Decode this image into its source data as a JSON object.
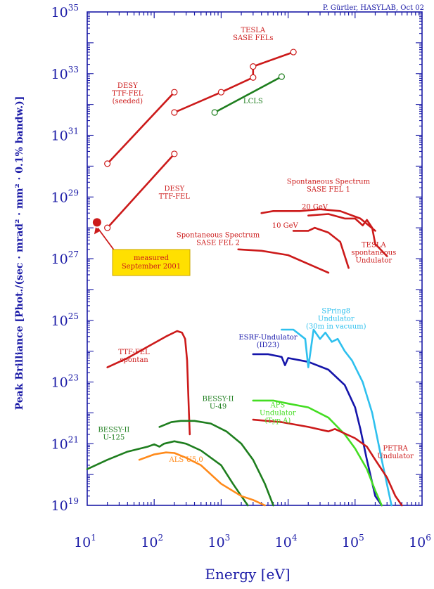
{
  "chart_data": {
    "type": "line",
    "credit": "P. Gürtler, HASYLAB, Oct 02",
    "xlabel": "Energy [eV]",
    "ylabel": "Peak Brilliance [Phot./(sec · mrad² · mm² · 0.1% bandw.)]",
    "x_scale": "log",
    "y_scale": "log",
    "xlim": [
      10,
      1000000
    ],
    "ylim": [
      1e+19,
      1e+35
    ],
    "x_ticks": [
      {
        "base": "10",
        "exp": "1"
      },
      {
        "base": "10",
        "exp": "2"
      },
      {
        "base": "10",
        "exp": "3"
      },
      {
        "base": "10",
        "exp": "4"
      },
      {
        "base": "10",
        "exp": "5"
      },
      {
        "base": "10",
        "exp": "6"
      }
    ],
    "y_ticks": [
      {
        "base": "10",
        "exp": "19"
      },
      {
        "base": "10",
        "exp": "21"
      },
      {
        "base": "10",
        "exp": "23"
      },
      {
        "base": "10",
        "exp": "25"
      },
      {
        "base": "10",
        "exp": "27"
      },
      {
        "base": "10",
        "exp": "29"
      },
      {
        "base": "10",
        "exp": "31"
      },
      {
        "base": "10",
        "exp": "33"
      },
      {
        "base": "10",
        "exp": "35"
      }
    ],
    "colors": {
      "axis": "#1a1aa6",
      "red": "#cc1a1a",
      "green": "#1e7e1e",
      "light_green": "#44dd22",
      "orange": "#ff8a1a",
      "navy": "#1515aa",
      "cyan": "#2ec0ee",
      "callout_fill": "#ffe000"
    },
    "series": [
      {
        "color": "red",
        "marker": "circle",
        "points": [
          [
            20,
            1.2e+30
          ],
          [
            200,
            2.5e+32
          ]
        ]
      },
      {
        "color": "red",
        "marker": "circle",
        "points": [
          [
            20,
            1e+28
          ],
          [
            200,
            2.5e+30
          ]
        ]
      },
      {
        "color": "red",
        "marker": "circle",
        "points": [
          [
            200,
            5.5e+31
          ],
          [
            1000,
            2.5e+32
          ],
          [
            3000,
            7.5e+32
          ],
          [
            3000,
            1.7e+33
          ],
          [
            12000,
            5e+33
          ]
        ]
      },
      {
        "color": "green",
        "marker": "circle",
        "points": [
          [
            800,
            5.5e+31
          ],
          [
            8000,
            8e+32
          ]
        ]
      },
      {
        "color": "red",
        "points": [
          [
            20,
            3e+23
          ],
          [
            40,
            6e+23
          ],
          [
            80,
            1.4e+24
          ],
          [
            150,
            3e+24
          ],
          [
            220,
            4.5e+24
          ],
          [
            260,
            4e+24
          ],
          [
            290,
            2.5e+24
          ],
          [
            310,
            5e+23
          ],
          [
            330,
            1e+22
          ],
          [
            340,
            2e+21
          ]
        ]
      },
      {
        "color": "green",
        "points": [
          [
            10,
            1.5e+20
          ],
          [
            20,
            3e+20
          ],
          [
            40,
            5.5e+20
          ],
          [
            80,
            8e+20
          ],
          [
            100,
            9.5e+20
          ],
          [
            120,
            8e+20
          ],
          [
            140,
            1e+21
          ],
          [
            200,
            1.2e+21
          ],
          [
            300,
            1e+21
          ],
          [
            500,
            6e+20
          ],
          [
            1000,
            2e+20
          ],
          [
            1500,
            5e+19
          ],
          [
            2000,
            2e+19
          ],
          [
            2500,
            1e+19
          ]
        ]
      },
      {
        "color": "green",
        "points": [
          [
            120,
            3.5e+21
          ],
          [
            180,
            5e+21
          ],
          [
            250,
            5.5e+21
          ],
          [
            400,
            5.5e+21
          ],
          [
            700,
            4.5e+21
          ],
          [
            1200,
            2.5e+21
          ],
          [
            2000,
            1e+21
          ],
          [
            3000,
            3e+20
          ],
          [
            4500,
            5e+19
          ],
          [
            6000,
            1e+19
          ]
        ]
      },
      {
        "color": "orange",
        "points": [
          [
            60,
            3e+20
          ],
          [
            100,
            4.5e+20
          ],
          [
            150,
            5.2e+20
          ],
          [
            200,
            5e+20
          ],
          [
            300,
            3.5e+20
          ],
          [
            500,
            2e+20
          ],
          [
            1000,
            5e+19
          ],
          [
            2000,
            2e+19
          ],
          [
            3000,
            1.5e+19
          ],
          [
            4500,
            1e+19
          ]
        ]
      },
      {
        "color": "navy",
        "points": [
          [
            3000,
            8e+23
          ],
          [
            5000,
            8e+23
          ],
          [
            8000,
            6.5e+23
          ],
          [
            9000,
            3.5e+23
          ],
          [
            10000,
            6e+23
          ],
          [
            20000,
            4.5e+23
          ],
          [
            40000,
            2.5e+23
          ],
          [
            70000,
            8e+22
          ],
          [
            100000,
            1.5e+22
          ],
          [
            120000,
            3e+21
          ],
          [
            150000,
            3e+20
          ],
          [
            200000,
            2e+19
          ],
          [
            250000,
            1e+19
          ]
        ]
      },
      {
        "color": "cyan",
        "points": [
          [
            8000,
            5e+24
          ],
          [
            12000,
            5e+24
          ],
          [
            18000,
            2.5e+24
          ],
          [
            20000,
            3e+23
          ],
          [
            24000,
            5e+24
          ],
          [
            30000,
            2.5e+24
          ],
          [
            36000,
            4e+24
          ],
          [
            45000,
            2e+24
          ],
          [
            55000,
            2.5e+24
          ],
          [
            70000,
            1e+24
          ],
          [
            90000,
            5e+23
          ],
          [
            130000,
            1e+23
          ],
          [
            180000,
            1e+22
          ],
          [
            250000,
            3e+20
          ],
          [
            350000,
            1e+19
          ]
        ]
      },
      {
        "color": "light_green",
        "points": [
          [
            3000,
            2.5e+22
          ],
          [
            6000,
            2.5e+22
          ],
          [
            10000,
            2e+22
          ],
          [
            20000,
            1.5e+22
          ],
          [
            40000,
            7e+21
          ],
          [
            70000,
            2e+21
          ],
          [
            100000,
            7e+20
          ],
          [
            150000,
            1.5e+20
          ],
          [
            200000,
            3e+19
          ],
          [
            250000,
            1e+19
          ]
        ]
      },
      {
        "color": "red",
        "points": [
          [
            3000,
            6e+21
          ],
          [
            8000,
            5e+21
          ],
          [
            20000,
            3.5e+21
          ],
          [
            40000,
            2.5e+21
          ],
          [
            50000,
            3e+21
          ],
          [
            100000,
            1.5e+21
          ],
          [
            150000,
            8e+20
          ],
          [
            200000,
            3e+20
          ],
          [
            300000,
            8e+19
          ],
          [
            400000,
            2e+19
          ],
          [
            500000,
            1e+19
          ]
        ]
      },
      {
        "color": "red",
        "points": [
          [
            1800,
            2e+27
          ],
          [
            4000,
            1.8e+27
          ],
          [
            10000,
            1.3e+27
          ],
          [
            40000,
            3.5e+26
          ]
        ]
      },
      {
        "color": "red",
        "points": [
          [
            12000,
            8e+27
          ],
          [
            20000,
            8e+27
          ],
          [
            25000,
            1e+28
          ],
          [
            40000,
            7e+27
          ],
          [
            60000,
            3.5e+27
          ],
          [
            80000,
            5e+26
          ]
        ]
      },
      {
        "color": "red",
        "points": [
          [
            20000,
            2.5e+28
          ],
          [
            40000,
            2.8e+28
          ],
          [
            70000,
            2e+28
          ],
          [
            100000,
            2e+28
          ],
          [
            130000,
            1.2e+28
          ],
          [
            150000,
            1.8e+28
          ],
          [
            180000,
            1e+28
          ],
          [
            200000,
            3e+27
          ],
          [
            300000,
            1.2e+27
          ]
        ]
      },
      {
        "color": "red",
        "points": [
          [
            4000,
            3e+28
          ],
          [
            6000,
            3.5e+28
          ],
          [
            15000,
            3.5e+28
          ],
          [
            30000,
            4e+28
          ],
          [
            60000,
            3.5e+28
          ],
          [
            120000,
            2e+28
          ],
          [
            200000,
            8e+27
          ]
        ]
      }
    ],
    "annotations": [
      {
        "text": [
          "TESLA",
          "SASE FELs"
        ],
        "x": 3000,
        "y": 2.2e+34,
        "color": "red",
        "anchor": "middle"
      },
      {
        "text": [
          "DESY",
          "TTF-FEL",
          "(seeded)"
        ],
        "x": 40,
        "y": 3.5e+32,
        "color": "red",
        "anchor": "middle"
      },
      {
        "text": [
          "LCLS"
        ],
        "x": 3000,
        "y": 1.1e+32,
        "color": "green",
        "anchor": "middle"
      },
      {
        "text": [
          "DESY",
          "TTF-FEL"
        ],
        "x": 200,
        "y": 1.6e+29,
        "color": "red",
        "anchor": "middle"
      },
      {
        "text": [
          "Spontaneous Spectrum",
          "SASE FEL 1"
        ],
        "x": 40000,
        "y": 2.7e+29,
        "color": "red",
        "anchor": "middle"
      },
      {
        "text": [
          "20 GeV"
        ],
        "x": 25000,
        "y": 4e+28,
        "color": "red",
        "anchor": "middle"
      },
      {
        "text": [
          "10 GeV"
        ],
        "x": 9000,
        "y": 1e+28,
        "color": "red",
        "anchor": "middle"
      },
      {
        "text": [
          "Spontaneous Spectrum",
          "SASE FEL 2"
        ],
        "x": 900,
        "y": 5e+27,
        "color": "red",
        "anchor": "middle"
      },
      {
        "text": [
          "TESLA",
          "spontaneous",
          "Undulator"
        ],
        "x": 190000,
        "y": 2.4e+27,
        "color": "red",
        "anchor": "middle"
      },
      {
        "text": [
          "SPring8",
          "Undulator",
          "(30m in vacuum)"
        ],
        "x": 52000,
        "y": 1.7e+25,
        "color": "cyan",
        "anchor": "middle"
      },
      {
        "text": [
          "ESRF-Undulator",
          "(ID23)"
        ],
        "x": 5000,
        "y": 2.4e+24,
        "color": "navy",
        "anchor": "middle"
      },
      {
        "text": [
          "TTF-FEL",
          "spontan"
        ],
        "x": 50,
        "y": 8e+23,
        "color": "red",
        "anchor": "middle"
      },
      {
        "text": [
          "BESSY-II",
          "U-49"
        ],
        "x": 900,
        "y": 2.4e+22,
        "color": "green",
        "anchor": "middle"
      },
      {
        "text": [
          "APS",
          "Undulator",
          "(Typ A)"
        ],
        "x": 7000,
        "y": 1.5e+22,
        "color": "light_green",
        "anchor": "middle"
      },
      {
        "text": [
          "BESSY-II",
          "U-125"
        ],
        "x": 25,
        "y": 2.4e+21,
        "color": "green",
        "anchor": "middle"
      },
      {
        "text": [
          "ALS U5.0"
        ],
        "x": 300,
        "y": 2.6e+20,
        "color": "orange",
        "anchor": "middle"
      },
      {
        "text": [
          "PETRA",
          "Undulator"
        ],
        "x": 400000,
        "y": 6e+20,
        "color": "red",
        "anchor": "middle"
      }
    ],
    "measured": {
      "x": 14,
      "y": 1.5e+28,
      "label": [
        "measured",
        "September 2001"
      ]
    }
  }
}
